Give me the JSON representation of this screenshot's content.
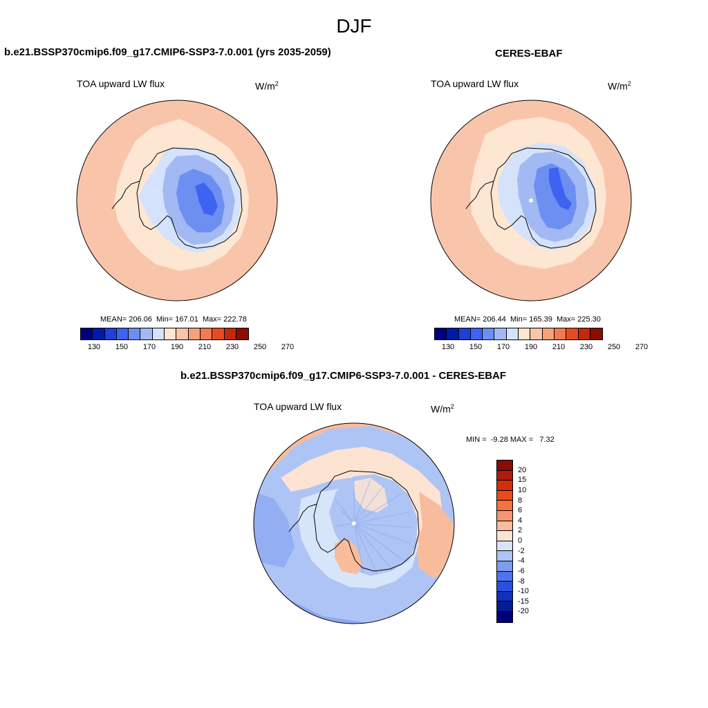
{
  "figure_title": "DJF",
  "panels": {
    "model": {
      "title": "b.e21.BSSP370cmip6.f09_g17.CMIP6-SSP3-7.0.001 (yrs 2035-2059)",
      "variable": "TOA upward LW flux",
      "units_base": "W/m",
      "units_exp": "2",
      "stats": "MEAN= 206.06  Min= 167.01  Max= 222.78"
    },
    "obs": {
      "title": "CERES-EBAF",
      "variable": "TOA upward LW flux",
      "units_base": "W/m",
      "units_exp": "2",
      "stats": "MEAN= 206.44  Min= 165.39  Max= 225.30"
    },
    "diff": {
      "title": "b.e21.BSSP370cmip6.f09_g17.CMIP6-SSP3-7.0.001 - CERES-EBAF",
      "variable": "TOA upward LW flux",
      "units_base": "W/m",
      "units_exp": "2",
      "stats": "MIN =  -9.28 MAX =   7.32"
    }
  },
  "colorbar_abs": {
    "colors": [
      "#00007f",
      "#0019a8",
      "#1f3fd8",
      "#3d63f0",
      "#6d8ff2",
      "#a2b9f3",
      "#d4e3fb",
      "#fde6d2",
      "#f9c5aa",
      "#f6a27a",
      "#f07b50",
      "#e54d20",
      "#c12a0a",
      "#8a0c02"
    ],
    "tick_labels": [
      "130",
      "150",
      "170",
      "190",
      "210",
      "230",
      "250",
      "270"
    ]
  },
  "colorbar_diff": {
    "colors": [
      "#8a0c02",
      "#b11c0a",
      "#d32c0e",
      "#ee4a18",
      "#f67040",
      "#f5966e",
      "#f8bc9c",
      "#fde4d2",
      "#d7e5fb",
      "#aec4f4",
      "#7e9cf0",
      "#4f74ef",
      "#2a4fe0",
      "#1230bd",
      "#021d94",
      "#00007a"
    ],
    "tick_labels": [
      "20",
      "15",
      "10",
      "8",
      "6",
      "4",
      "2",
      "0",
      "-2",
      "-4",
      "-6",
      "-8",
      "-10",
      "-15",
      "-20"
    ]
  },
  "map_colors": {
    "ocean_warm": "#f9c5aa",
    "ocean_light": "#fde6d2",
    "ice_light": "#d4e3fb",
    "ice_mid": "#a2b9f3",
    "ice_core": "#6d8ff2",
    "ice_deep": "#3d63f0",
    "edge_warm": "#f6a27a",
    "diff_neg_light": "#d7e5fb",
    "diff_neg": "#aec4f4",
    "diff_neg_mid": "#7e9cf0",
    "diff_pos": "#f8bc9c",
    "diff_pos_light": "#fde4d2"
  }
}
